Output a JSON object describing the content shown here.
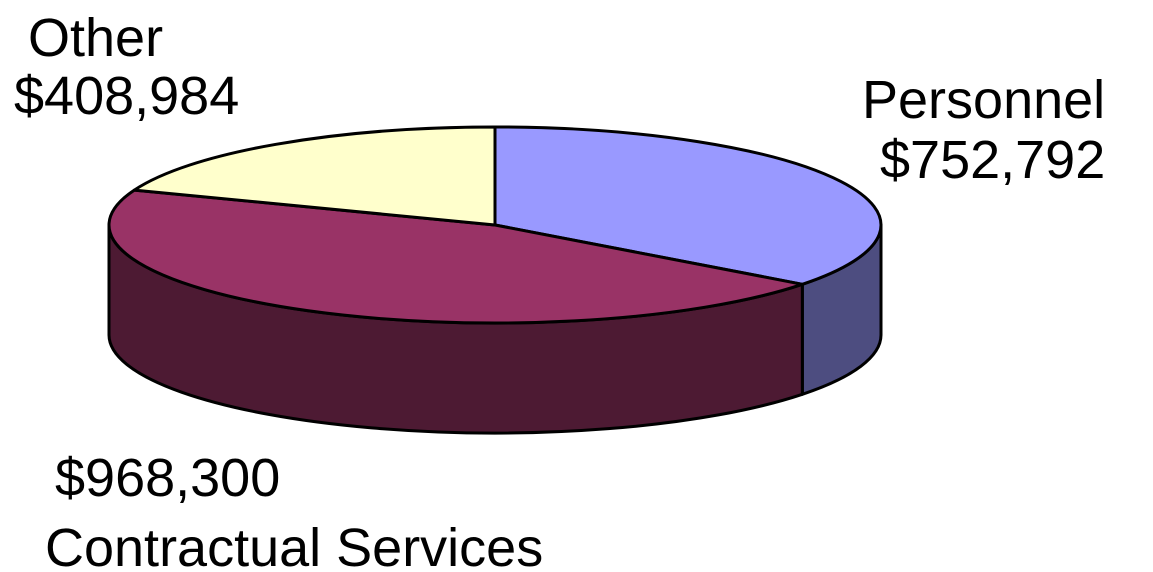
{
  "chart_data": {
    "type": "pie",
    "style": "3d",
    "series": [
      {
        "name": "Personnel",
        "value": 752792,
        "value_label": "$752,792",
        "color": "#9999ff",
        "side_color": "#4d4d80"
      },
      {
        "name": "Contractual Services",
        "value": 968300,
        "value_label": "$968,300",
        "color": "#993366",
        "side_color": "#4d1a33"
      },
      {
        "name": "Other",
        "value": 408984,
        "value_label": "$408,984",
        "color": "#ffffcc",
        "side_color": "#808066"
      }
    ],
    "start_angle": "12 o'clock",
    "direction": "clockwise",
    "outline_color": "#000000"
  }
}
